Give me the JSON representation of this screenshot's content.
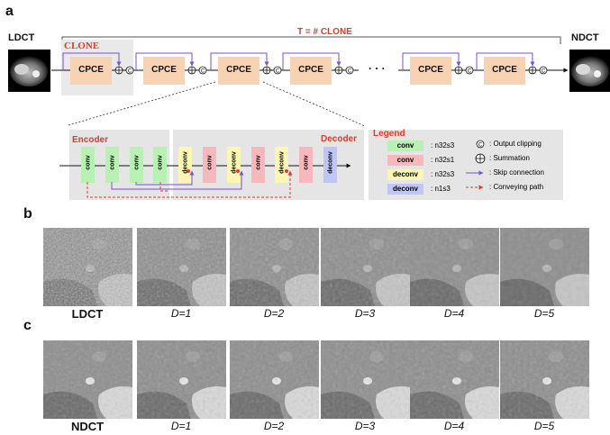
{
  "panel_a": {
    "letter": "a",
    "input_label": "LDCT",
    "output_label": "NDCT",
    "clone_label": "CLONE",
    "loop_label": "T = # CLONE",
    "block_label": "CPCE",
    "clip_symbol": "C",
    "ellipsis": "· · ·",
    "encoder_label": "Encoder",
    "decoder_label": "Decoder",
    "layers": [
      "conv",
      "conv",
      "conv",
      "conv",
      "deconv",
      "conv",
      "deconv",
      "conv",
      "deconv",
      "conv",
      "deconv"
    ],
    "legend": {
      "title": "Legend",
      "items": [
        {
          "chip": "conv",
          "desc": "n32s3",
          "color": "#b9f0b3"
        },
        {
          "chip": "conv",
          "desc": "n32s1",
          "color": "#f6b8bd"
        },
        {
          "chip": "deconv",
          "desc": "n32s3",
          "color": "#fbf6b6"
        },
        {
          "chip": "deconv",
          "desc": "n1s3",
          "color": "#bfc6f5"
        }
      ],
      "symbols": [
        {
          "desc": "Output clipping"
        },
        {
          "desc": "Summation"
        },
        {
          "desc": "Skip connection"
        },
        {
          "desc": "Conveying path"
        }
      ]
    }
  },
  "panel_b": {
    "letter": "b",
    "captions": [
      "LDCT",
      "D=1",
      "D=2",
      "D=3",
      "D=4",
      "D=5"
    ]
  },
  "panel_c": {
    "letter": "c",
    "captions": [
      "NDCT",
      "D=1",
      "D=2",
      "D=3",
      "D=4",
      "D=5"
    ]
  },
  "colors": {
    "cpce": "#f7d3b3",
    "clone_bg": "#e9e9e9",
    "accent_red": "#e03a2a",
    "skip": "#7b4fd6",
    "panel_bg": "#ececec"
  }
}
